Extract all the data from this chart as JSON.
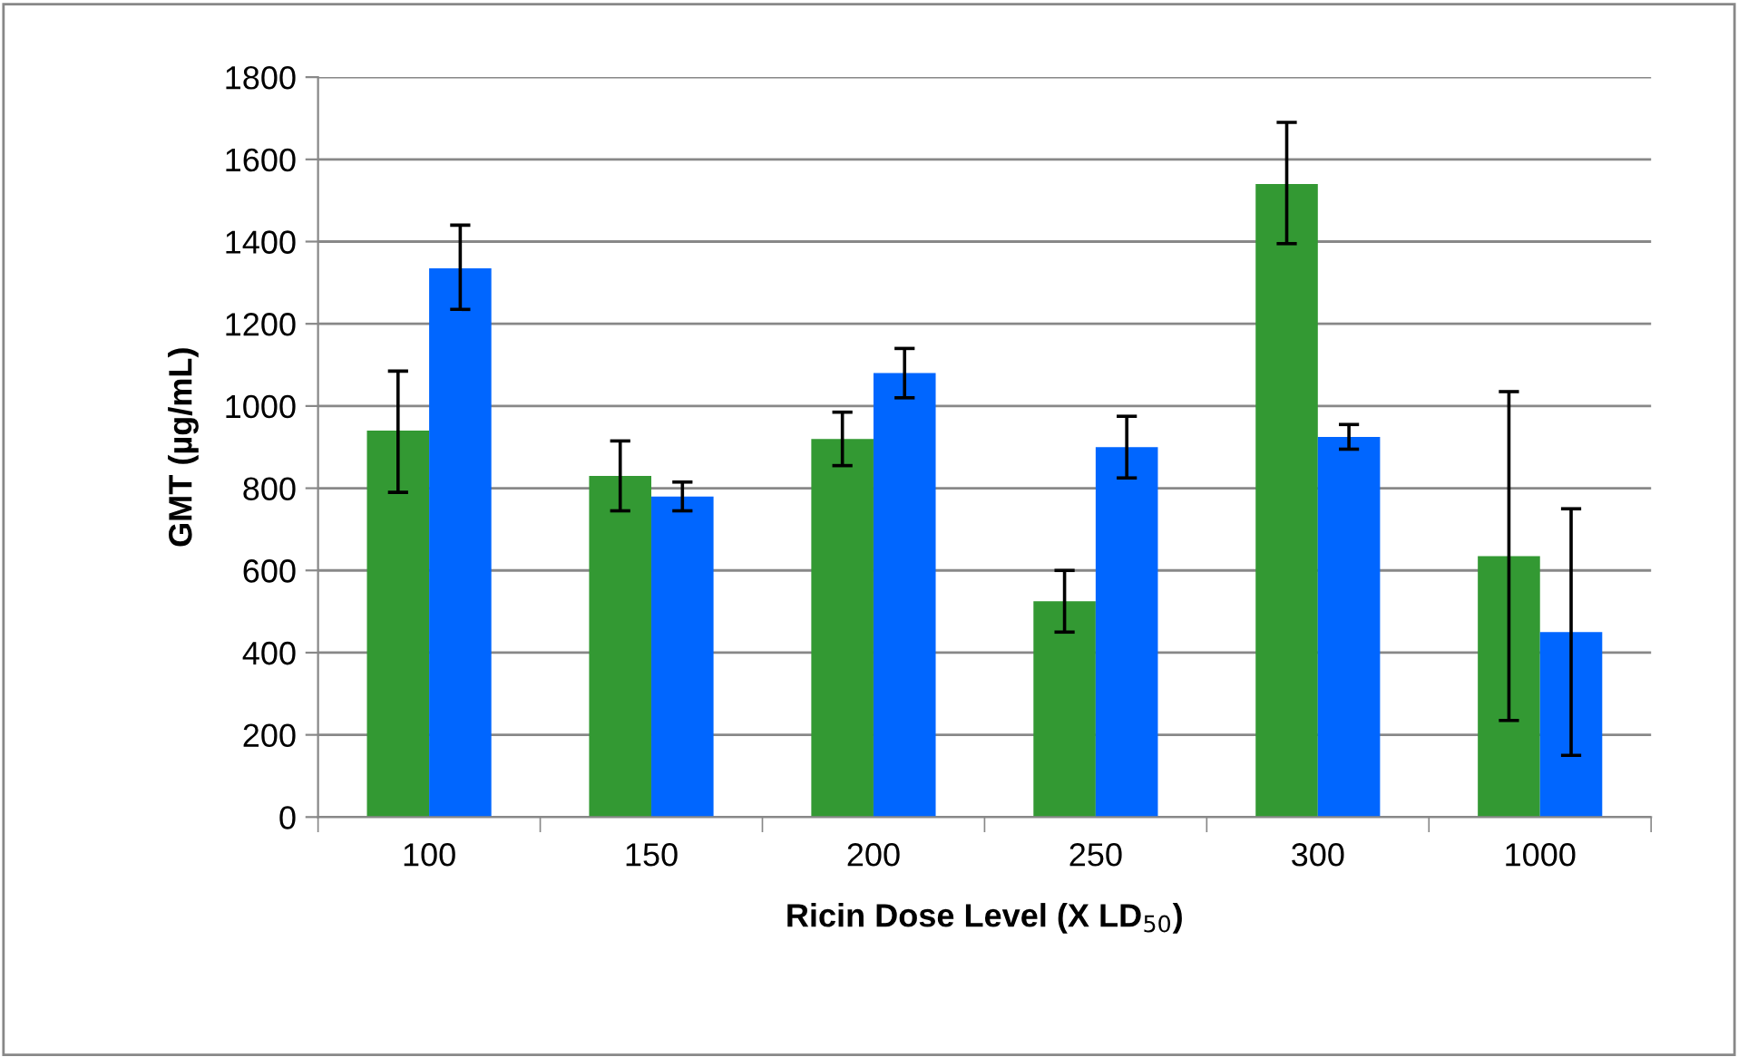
{
  "chart_data": {
    "type": "bar",
    "xlabel": "Ricin Dose Level (X LD$_{50}$)",
    "ylabel": "GMT (µg/mL)",
    "categories": [
      "100",
      "150",
      "200",
      "250",
      "300",
      "1000"
    ],
    "series": [
      {
        "color": "#339933",
        "values": [
          940,
          830,
          920,
          525,
          1540,
          635
        ],
        "errors": [
          [
            790,
            1085
          ],
          [
            745,
            915
          ],
          [
            855,
            985
          ],
          [
            450,
            600
          ],
          [
            1395,
            1690
          ],
          [
            235,
            1035
          ]
        ]
      },
      {
        "color": "#0066ff",
        "values": [
          1335,
          780,
          1080,
          900,
          925,
          450
        ],
        "errors": [
          [
            1235,
            1440
          ],
          [
            745,
            815
          ],
          [
            1020,
            1140
          ],
          [
            825,
            975
          ],
          [
            895,
            955
          ],
          [
            150,
            750
          ]
        ]
      }
    ],
    "ylim": [
      0,
      1800
    ],
    "yticks": [
      0,
      200,
      400,
      600,
      800,
      1000,
      1200,
      1400,
      1600,
      1800
    ],
    "grid": "y"
  }
}
